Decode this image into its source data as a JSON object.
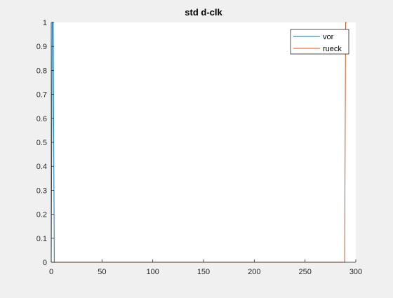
{
  "chart_data": {
    "type": "line",
    "title": "std d-clk",
    "xlabel": "",
    "ylabel": "",
    "xlim": [
      0,
      300
    ],
    "ylim": [
      0,
      1
    ],
    "xticks": [
      0,
      50,
      100,
      150,
      200,
      250,
      300
    ],
    "yticks": [
      0,
      0.1,
      0.2,
      0.3,
      0.4,
      0.5,
      0.6,
      0.7,
      0.8,
      0.9,
      1
    ],
    "grid": false,
    "legend_position": "top-right",
    "series": [
      {
        "name": "vor",
        "color": "#0072BD",
        "x": [
          0,
          1,
          2,
          3,
          290
        ],
        "y": [
          0,
          1,
          1,
          0,
          0
        ]
      },
      {
        "name": "rueck",
        "color": "#D95319",
        "x": [
          0,
          289,
          290,
          291
        ],
        "y": [
          0,
          0,
          1,
          1
        ]
      }
    ]
  }
}
